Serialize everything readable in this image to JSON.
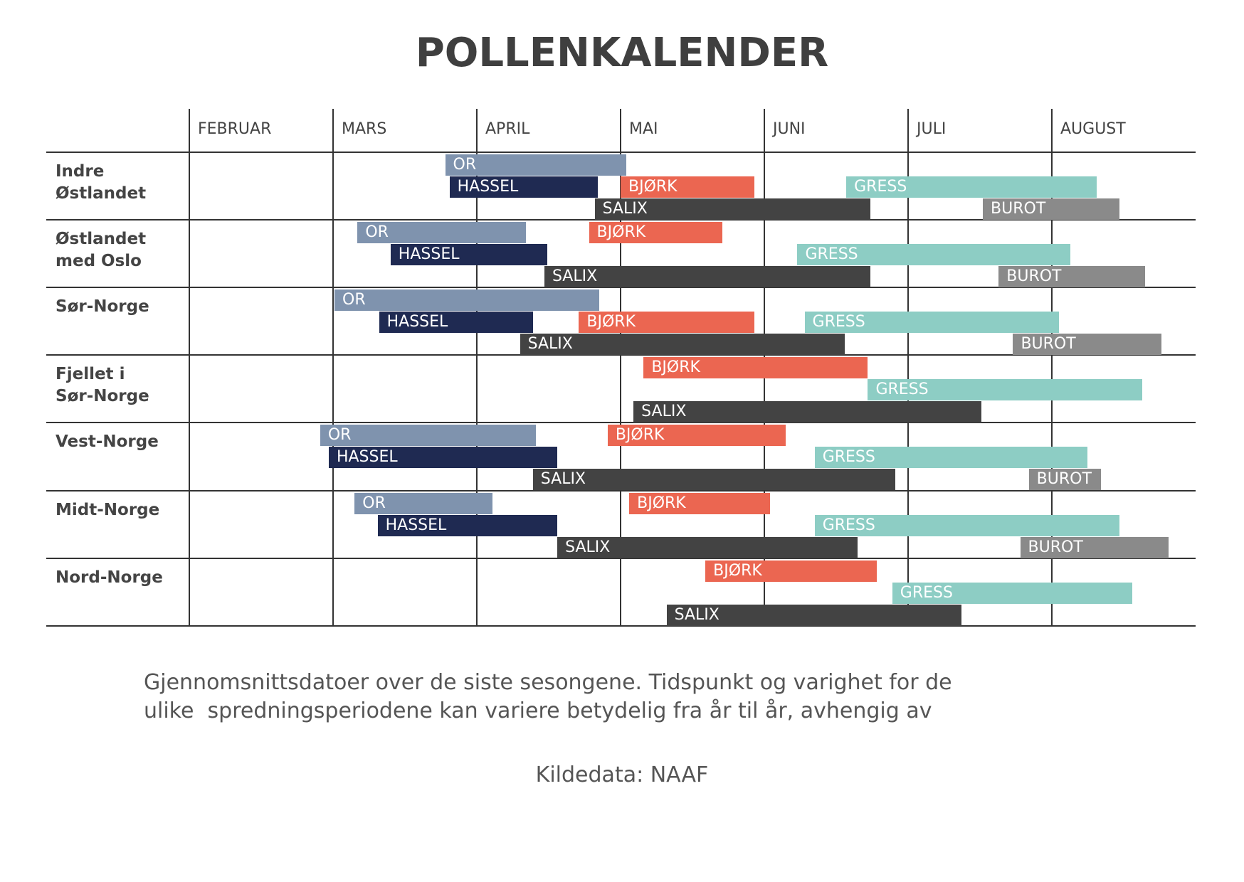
{
  "chart_data": {
    "type": "gantt",
    "title": "POLLENKALENDER",
    "xlim": [
      0,
      7
    ],
    "xticks": [
      {
        "value": 0,
        "label": "FEBRUAR"
      },
      {
        "value": 1,
        "label": "MARS"
      },
      {
        "value": 2,
        "label": "APRIL"
      },
      {
        "value": 3,
        "label": "MAI"
      },
      {
        "value": 4,
        "label": "JUNI"
      },
      {
        "value": 5,
        "label": "JULI"
      },
      {
        "value": 6,
        "label": "AUGUST"
      }
    ],
    "categories": [
      "Indre\nØstlandet",
      "Østlandet\nmed Oslo",
      "Sør-Norge",
      "Fjellet i\nSør-Norge",
      "Vest-Norge",
      "Midt-Norge",
      "Nord-Norge"
    ],
    "series": [
      {
        "name": "OR",
        "color": "#7f93ae",
        "values": [
          [
            1.78,
            3.04
          ],
          [
            1.17,
            2.34
          ],
          [
            1.01,
            2.85
          ],
          null,
          [
            0.91,
            2.41
          ],
          [
            1.15,
            2.11
          ],
          null
        ]
      },
      {
        "name": "HASSEL",
        "color": "#1f2a52",
        "values": [
          [
            1.81,
            2.84
          ],
          [
            1.4,
            2.49
          ],
          [
            1.32,
            2.39
          ],
          null,
          [
            0.97,
            2.56
          ],
          [
            1.31,
            2.56
          ],
          null
        ]
      },
      {
        "name": "BJØRK",
        "color": "#eb6651",
        "values": [
          [
            3.0,
            3.93
          ],
          [
            2.78,
            3.71
          ],
          [
            2.71,
            3.93
          ],
          [
            3.16,
            4.72
          ],
          [
            2.91,
            4.15
          ],
          [
            3.06,
            4.04
          ],
          [
            3.59,
            4.78
          ]
        ]
      },
      {
        "name": "GRESS",
        "color": "#8dcdc4",
        "values": [
          [
            4.57,
            6.31
          ],
          [
            4.23,
            6.13
          ],
          [
            4.28,
            6.05
          ],
          [
            4.72,
            6.63
          ],
          [
            4.35,
            6.25
          ],
          [
            4.35,
            6.47
          ],
          [
            4.89,
            6.56
          ]
        ]
      },
      {
        "name": "SALIX",
        "color": "#434343",
        "values": [
          [
            2.82,
            4.74
          ],
          [
            2.47,
            4.74
          ],
          [
            2.3,
            4.56
          ],
          [
            3.09,
            5.51
          ],
          [
            2.39,
            4.91
          ],
          [
            2.56,
            4.65
          ],
          [
            3.32,
            5.37
          ]
        ]
      },
      {
        "name": "BUROT",
        "color": "#8a8a8a",
        "values": [
          [
            5.52,
            6.47
          ],
          [
            5.63,
            6.65
          ],
          [
            5.73,
            6.76
          ],
          null,
          [
            5.84,
            6.34
          ],
          [
            5.78,
            6.81
          ],
          null
        ]
      }
    ],
    "note": "Gjennomsnittsdatoer over de siste sesongene. Tidspunkt og varighet for de\nulike  spredningsperiodene kan variere betydelig fra år til år, avhengig av",
    "source": "Kildedata: NAAF"
  }
}
